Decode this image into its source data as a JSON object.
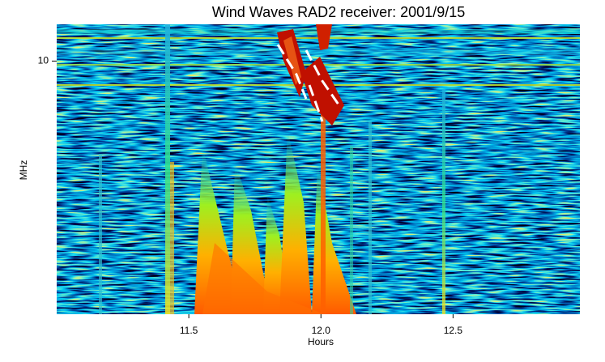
{
  "chart_data": {
    "type": "spectrogram",
    "title": "Wind Waves RAD2 receiver: 2001/9/15",
    "xlabel": "Hours",
    "ylabel": "MHz",
    "xlim": [
      11.0,
      12.98
    ],
    "xticks": [
      11.5,
      {
        "value": 12,
        "label": "12.0"
      },
      12.5
    ],
    "ylim": [
      1.075,
      13.825
    ],
    "yticks": [
      10
    ],
    "ylog": true
  }
}
